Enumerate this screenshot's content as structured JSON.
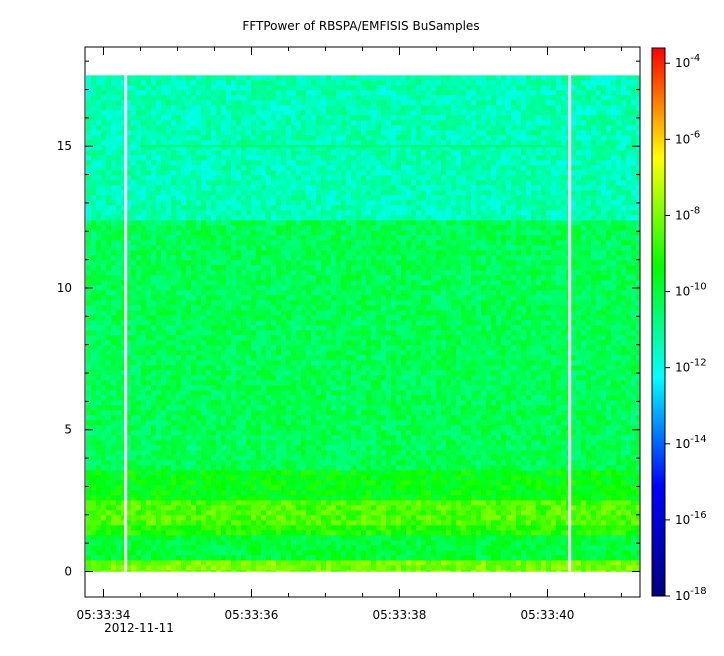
{
  "chart_data": {
    "type": "heatmap",
    "title": "FFTPower of RBSPA/EMFISIS  BuSamples",
    "xlabel": "",
    "ylabel": "",
    "x_ticks": [
      "05:33:34",
      "05:33:36",
      "05:33:38",
      "05:33:40"
    ],
    "x_tick_values": [
      34,
      36,
      38,
      40
    ],
    "x_date_label": "2012-11-11",
    "xlim_seconds": [
      33.75,
      41.25
    ],
    "y_ticks": [
      "0",
      "5",
      "10",
      "15"
    ],
    "y_tick_values": [
      0,
      5,
      10,
      15
    ],
    "ylim": [
      -0.9,
      18.5
    ],
    "data_y_range": [
      0,
      17.5
    ],
    "gaps_seconds": [
      34.3,
      40.3
    ],
    "bands": [
      {
        "y_from": 0.0,
        "y_to": 0.4,
        "level": -8.0
      },
      {
        "y_from": 0.4,
        "y_to": 1.2,
        "level": -10.0
      },
      {
        "y_from": 1.2,
        "y_to": 1.6,
        "level": -9.0
      },
      {
        "y_from": 1.6,
        "y_to": 2.5,
        "level": -8.5
      },
      {
        "y_from": 2.5,
        "y_to": 3.5,
        "level": -9.5
      },
      {
        "y_from": 3.5,
        "y_to": 12.3,
        "level": -10.3
      },
      {
        "y_from": 12.3,
        "y_to": 17.5,
        "level": -11.4
      }
    ],
    "line_features": [
      {
        "y": 15.0,
        "level": -10.5
      }
    ],
    "colorbar": {
      "scale": "log",
      "range_exp": [
        -18,
        -3.6
      ],
      "tick_exps": [
        -18,
        -16,
        -14,
        -12,
        -10,
        -8,
        -6,
        -4
      ],
      "colors": [
        "#000080",
        "#0000ff",
        "#00ffff",
        "#00ff00",
        "#ffff00",
        "#ff0000"
      ]
    }
  }
}
